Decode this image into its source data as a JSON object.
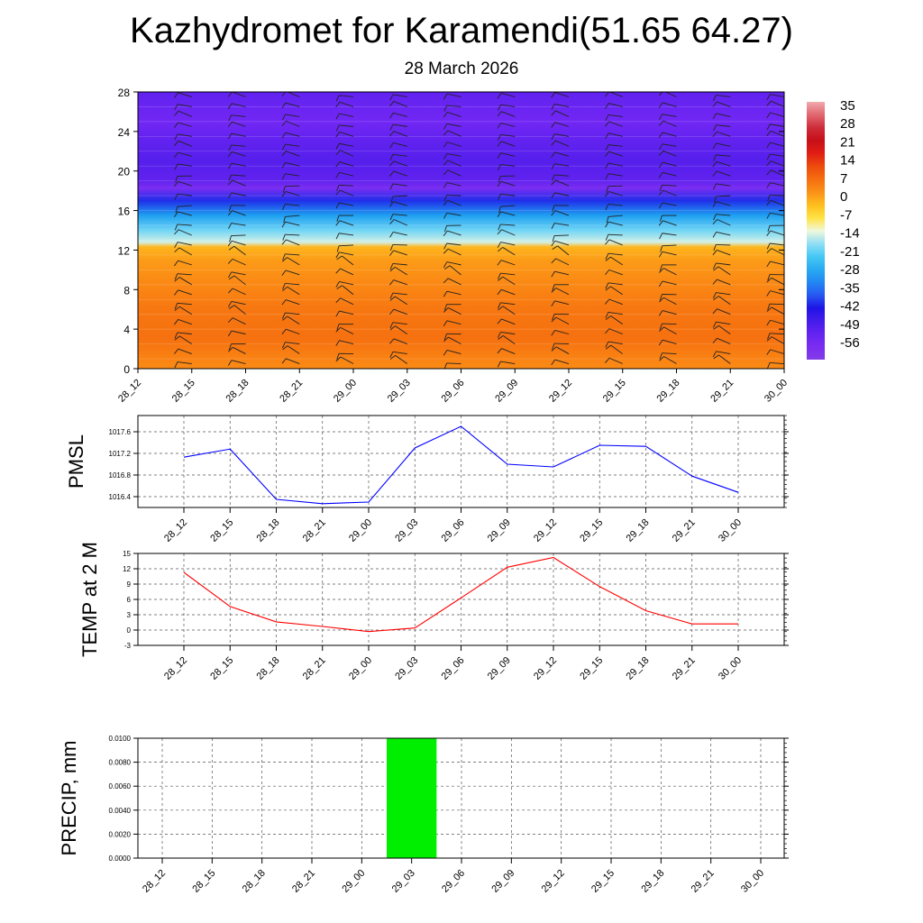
{
  "title": "Kazhydromet for Karamendi(51.65 64.27)",
  "subtitle": "28 March 2026",
  "time_labels": [
    "28_12",
    "28_15",
    "28_18",
    "28_21",
    "29_00",
    "29_03",
    "29_06",
    "29_09",
    "29_12",
    "29_15",
    "29_18",
    "29_21",
    "30_00"
  ],
  "chart_data": [
    {
      "type": "heatmap",
      "name": "temperature-wind-cross-section",
      "x_categories": [
        "28_12",
        "28_15",
        "28_18",
        "28_21",
        "29_00",
        "29_03",
        "29_06",
        "29_09",
        "29_12",
        "29_15",
        "29_18",
        "29_21",
        "30_00"
      ],
      "y_ticks": [
        "0",
        "4",
        "8",
        "12",
        "16",
        "20",
        "24",
        "28"
      ],
      "ylim": [
        0,
        28
      ],
      "colorbar_labels": [
        "35",
        "28",
        "21",
        "14",
        "7",
        "0",
        "-7",
        "-14",
        "-21",
        "-28",
        "-35",
        "-42",
        "-49",
        "-56"
      ],
      "colorbar_range": [
        -63,
        42
      ],
      "profile": [
        [
          0,
          6
        ],
        [
          3,
          10
        ],
        [
          6,
          9
        ],
        [
          9,
          6
        ],
        [
          11,
          4
        ],
        [
          12.3,
          1
        ],
        [
          12.8,
          -12
        ],
        [
          14,
          -18
        ],
        [
          15.5,
          -28
        ],
        [
          17,
          -40
        ],
        [
          18.3,
          -58
        ],
        [
          19,
          -52
        ],
        [
          21,
          -50
        ],
        [
          23,
          -52
        ],
        [
          25,
          -55
        ],
        [
          28,
          -52
        ]
      ],
      "colors": {
        "warm": "#f26c0d",
        "cold": "#7f3bf5"
      }
    },
    {
      "type": "line",
      "name": "pmsl",
      "ylabel": "PMSL",
      "x": [
        "28_12",
        "28_15",
        "28_18",
        "28_21",
        "29_00",
        "29_03",
        "29_06",
        "29_09",
        "29_12",
        "29_15",
        "29_18",
        "29_21",
        "30_00"
      ],
      "y": [
        1017.13,
        1017.28,
        1016.35,
        1016.27,
        1016.3,
        1017.3,
        1017.7,
        1017.0,
        1016.95,
        1017.35,
        1017.33,
        1016.78,
        1016.48
      ],
      "ylim": [
        1016.2,
        1017.9
      ],
      "yticks": [
        "1016.4",
        "1016.8",
        "1017.2",
        "1017.6"
      ],
      "ytick_values": [
        1016.4,
        1016.8,
        1017.2,
        1017.6
      ],
      "color": "#0000ff"
    },
    {
      "type": "line",
      "name": "temp-2m",
      "ylabel": "TEMP at 2 M",
      "x": [
        "28_12",
        "28_15",
        "28_18",
        "28_21",
        "29_00",
        "29_03",
        "29_06",
        "29_09",
        "29_12",
        "29_15",
        "29_18",
        "29_21",
        "30_00"
      ],
      "y": [
        11.3,
        4.6,
        1.6,
        0.7,
        -0.3,
        0.4,
        6.3,
        12.3,
        14.2,
        8.5,
        3.8,
        1.2,
        1.2
      ],
      "ylim": [
        -3,
        15
      ],
      "yticks": [
        "-3",
        "0",
        "3",
        "6",
        "9",
        "12",
        "15"
      ],
      "ytick_values": [
        -3,
        0,
        3,
        6,
        9,
        12,
        15
      ],
      "color": "#ff0000"
    },
    {
      "type": "bar",
      "name": "precip",
      "ylabel": "PRECIP, mm",
      "categories": [
        "28_12",
        "28_15",
        "28_18",
        "28_21",
        "29_00",
        "29_03",
        "29_06",
        "29_09",
        "29_12",
        "29_15",
        "29_18",
        "29_21",
        "30_00"
      ],
      "values": [
        0,
        0,
        0,
        0,
        0,
        0.01,
        0,
        0,
        0,
        0,
        0,
        0,
        0
      ],
      "ylim": [
        0,
        0.01
      ],
      "yticks": [
        "0.0000",
        "0.0020",
        "0.0040",
        "0.0060",
        "0.0080",
        "0.0100"
      ],
      "ytick_values": [
        0,
        0.002,
        0.004,
        0.006,
        0.008,
        0.01
      ],
      "color": "#00ee00"
    }
  ]
}
